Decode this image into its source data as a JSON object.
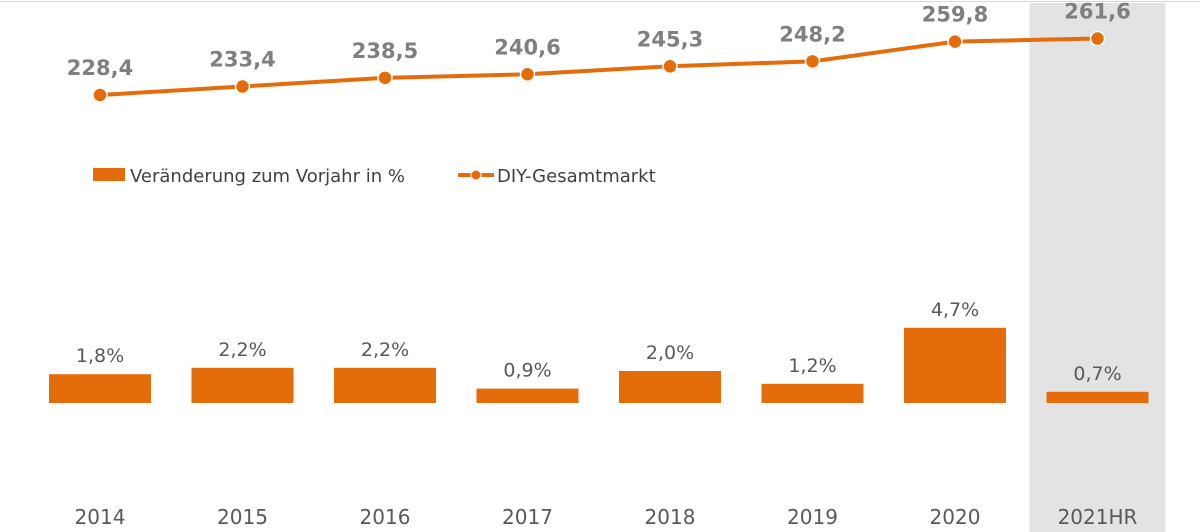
{
  "chart_data": {
    "type": "bar",
    "categories": [
      "2014",
      "2015",
      "2016",
      "2017",
      "2018",
      "2019",
      "2020",
      "2021HR"
    ],
    "highlight_category": "2021HR",
    "series": [
      {
        "name": "Veränderung zum Vorjahr in %",
        "kind": "bar",
        "values": [
          1.8,
          2.2,
          2.2,
          0.9,
          2.0,
          1.2,
          4.7,
          0.7
        ],
        "labels": [
          "1,8%",
          "2,2%",
          "2,2%",
          "0,9%",
          "2,0%",
          "1,2%",
          "4,7%",
          "0,7%"
        ]
      },
      {
        "name": "DIY-Gesamtmarkt",
        "kind": "line",
        "values": [
          228.4,
          233.4,
          238.5,
          240.6,
          245.3,
          248.2,
          259.8,
          261.6
        ],
        "labels": [
          "228,4",
          "233,4",
          "238,5",
          "240,6",
          "245,3",
          "248,2",
          "259,8",
          "261,6"
        ]
      }
    ],
    "legend_position": "middle-left",
    "grid": false,
    "colors": {
      "series": "#e46c0a",
      "highlight_band": "#e3e3e3",
      "line_label": "#7f7f7f",
      "bar_label": "#595959",
      "tick_label": "#595959"
    }
  }
}
